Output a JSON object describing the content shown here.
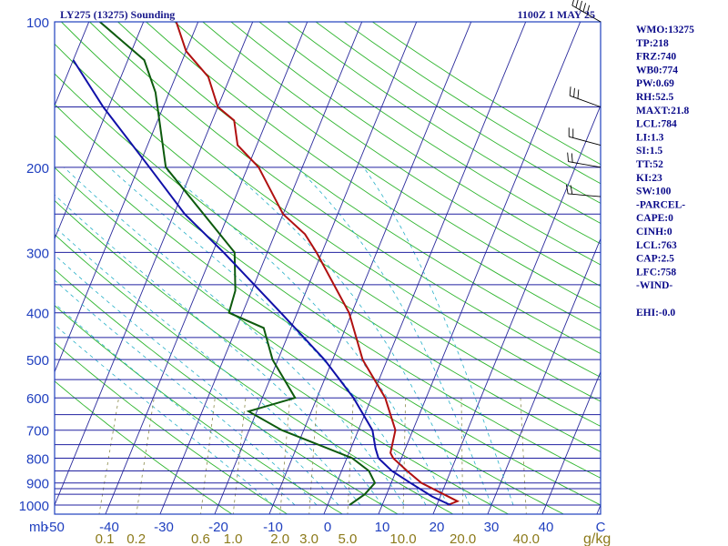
{
  "header": {
    "station_title": "LY275 (13275) Sounding",
    "valid_time": "1100Z  1 MAY 25"
  },
  "indices": [
    "WMO:13275",
    "TP:218",
    "FRZ:740",
    "WB0:774",
    "PW:0.69",
    "RH:52.5",
    "MAXT:21.8",
    "LCL:784",
    "LI:1.3",
    "SI:1.5",
    "TT:52",
    "KI:23",
    "SW:100",
    "-PARCEL-",
    "CAPE:0",
    "CINH:0",
    "LCL:763",
    "CAP:2.5",
    "LFC:758",
    "-WIND-",
    "",
    "EHI:-0.0"
  ],
  "chart_data": {
    "type": "line",
    "pressure_unit_label": "mb",
    "mixing_ratio_unit_label": "g/kg",
    "y_scale": "log",
    "ylim": [
      1000,
      100
    ],
    "xlim": [
      -50,
      50
    ],
    "pressure_tick_labels": [
      "100",
      "200",
      "300",
      "400",
      "500",
      "600",
      "700",
      "800",
      "900",
      "1000"
    ],
    "pressure_ticks": [
      100,
      200,
      300,
      400,
      500,
      600,
      700,
      800,
      900,
      1000
    ],
    "pressure_gridlines": [
      100,
      150,
      200,
      250,
      300,
      350,
      400,
      450,
      500,
      550,
      600,
      650,
      700,
      750,
      800,
      850,
      900,
      925,
      950,
      1000
    ],
    "temperature_ticks": [
      -50,
      -40,
      -30,
      -20,
      -10,
      0,
      10,
      20,
      30,
      40,
      50
    ],
    "temperature_tick_labels": [
      "-50",
      "-40",
      "-30",
      "-20",
      "-10",
      "0",
      "10",
      "20",
      "30",
      "40",
      "C"
    ],
    "mixing_ratio_labels": [
      "0.1",
      "0.2",
      "0.6",
      "1.0",
      "2.0",
      "3.0",
      "5.0",
      "10.0",
      "20.0",
      "40.0"
    ],
    "colors": {
      "frame": "#1f3fbf",
      "isobar": "#2020a0",
      "isotherm": "#2a2a9c",
      "dry_adiabat": "#2fb52f",
      "moist_adiabat": "#26b0c8",
      "mixing_ratio": "#8a8a4a",
      "temperature": "#b01010",
      "dewpoint": "#0d5a0d",
      "parcel": "#1010a8",
      "wind_barb": "#000000",
      "mr_label": "#8c7a1a"
    },
    "series": [
      {
        "name": "Temperature",
        "points": [
          [
            1000,
            22
          ],
          [
            982,
            23.5
          ],
          [
            900,
            15.5
          ],
          [
            850,
            12
          ],
          [
            800,
            8.5
          ],
          [
            780,
            7.6
          ],
          [
            700,
            6.8
          ],
          [
            600,
            2.5
          ],
          [
            500,
            -4.5
          ],
          [
            400,
            -10.5
          ],
          [
            300,
            -21
          ],
          [
            275,
            -24.5
          ],
          [
            250,
            -30
          ],
          [
            200,
            -38
          ],
          [
            180,
            -43.5
          ],
          [
            160,
            -46
          ],
          [
            150,
            -50
          ],
          [
            130,
            -54
          ],
          [
            115,
            -60
          ],
          [
            100,
            -64
          ]
        ]
      },
      {
        "name": "Dewpoint",
        "points": [
          [
            1000,
            4
          ],
          [
            950,
            6
          ],
          [
            900,
            7
          ],
          [
            850,
            5
          ],
          [
            800,
            1
          ],
          [
            700,
            -14
          ],
          [
            640,
            -21.5
          ],
          [
            600,
            -14
          ],
          [
            500,
            -21
          ],
          [
            430,
            -25
          ],
          [
            400,
            -32.5
          ],
          [
            360,
            -33
          ],
          [
            300,
            -36
          ],
          [
            200,
            -55
          ],
          [
            140,
            -62.5
          ],
          [
            120,
            -67
          ],
          [
            100,
            -78
          ]
        ]
      },
      {
        "name": "Parcel",
        "points": [
          [
            1000,
            22.5
          ],
          [
            960,
            18.5
          ],
          [
            900,
            13.5
          ],
          [
            850,
            9.2
          ],
          [
            800,
            5.8
          ],
          [
            763,
            4.5
          ],
          [
            700,
            2.6
          ],
          [
            600,
            -3.3
          ],
          [
            500,
            -11.5
          ],
          [
            400,
            -23
          ],
          [
            300,
            -38
          ],
          [
            250,
            -48
          ],
          [
            200,
            -58
          ],
          [
            150,
            -71
          ],
          [
            120,
            -80
          ]
        ]
      }
    ],
    "wind_barbs": [
      {
        "pressure": 100,
        "direction": 300,
        "speed": 50
      },
      {
        "pressure": 150,
        "direction": 290,
        "speed": 35
      },
      {
        "pressure": 180,
        "direction": 285,
        "speed": 25
      },
      {
        "pressure": 200,
        "direction": 280,
        "speed": 25
      },
      {
        "pressure": 230,
        "direction": 275,
        "speed": 20
      }
    ]
  }
}
